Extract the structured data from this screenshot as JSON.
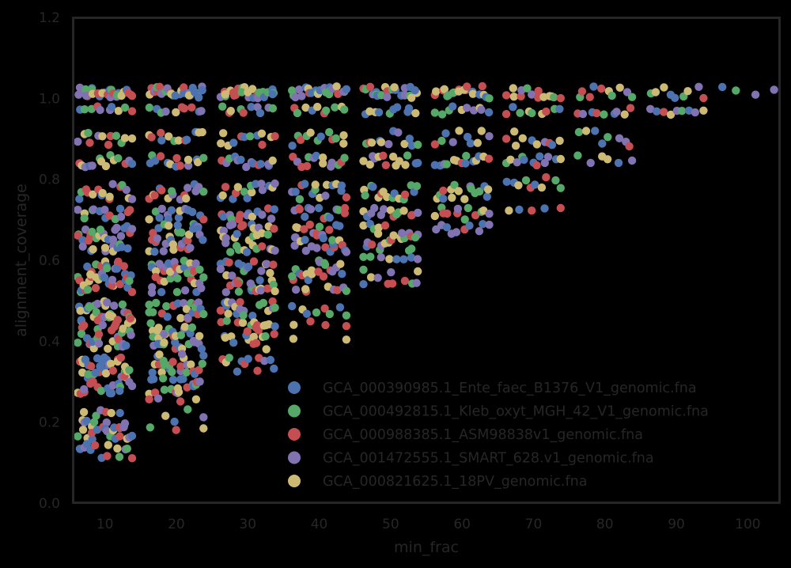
{
  "chart_data": {
    "type": "scatter",
    "title": "",
    "xlabel": "min_frac",
    "ylabel": "alignment_coverage",
    "xlim": [
      5.5,
      104.5
    ],
    "ylim": [
      0.0,
      1.2
    ],
    "xticks": [
      10,
      20,
      30,
      40,
      50,
      60,
      70,
      80,
      90,
      100
    ],
    "yticks": [
      "0.0",
      "0.2",
      "0.4",
      "0.6",
      "0.8",
      "1.0",
      "1.2"
    ],
    "grid": false,
    "legend_position": "lower right",
    "jitter_width": 8,
    "series": [
      {
        "name": "GCA_000390985.1_Ente_faec_B1376_V1_genomic.fna",
        "color": "#4C72B0"
      },
      {
        "name": "GCA_000492815.1_Kleb_oxyt_MGH_42_V1_genomic.fna",
        "color": "#55A868"
      },
      {
        "name": "GCA_000988385.1_ASM98838v1_genomic.fna",
        "color": "#C44E52"
      },
      {
        "name": "GCA_001472555.1_SMART_628.v1_genomic.fna",
        "color": "#8172B2"
      },
      {
        "name": "GCA_000821625.1_18PV_genomic.fna",
        "color": "#CCB974"
      }
    ],
    "groups": [
      {
        "x": 10,
        "bands": [
          [
            1.0,
            1.03,
            28
          ],
          [
            0.96,
            0.98,
            10
          ],
          [
            0.88,
            0.92,
            12
          ],
          [
            0.83,
            0.86,
            14
          ],
          [
            0.75,
            0.79,
            16
          ],
          [
            0.7,
            0.73,
            14
          ],
          [
            0.62,
            0.69,
            34
          ],
          [
            0.52,
            0.6,
            40
          ],
          [
            0.38,
            0.5,
            60
          ],
          [
            0.27,
            0.37,
            50
          ],
          [
            0.11,
            0.23,
            48
          ]
        ]
      },
      {
        "x": 20,
        "bands": [
          [
            1.0,
            1.03,
            28
          ],
          [
            0.96,
            0.98,
            10
          ],
          [
            0.88,
            0.92,
            12
          ],
          [
            0.83,
            0.86,
            14
          ],
          [
            0.75,
            0.79,
            16
          ],
          [
            0.7,
            0.73,
            14
          ],
          [
            0.62,
            0.69,
            34
          ],
          [
            0.52,
            0.6,
            40
          ],
          [
            0.38,
            0.5,
            60
          ],
          [
            0.27,
            0.37,
            44
          ],
          [
            0.2,
            0.26,
            8
          ],
          [
            0.17,
            0.19,
            3
          ]
        ]
      },
      {
        "x": 30,
        "bands": [
          [
            1.0,
            1.03,
            26
          ],
          [
            0.96,
            0.98,
            10
          ],
          [
            0.88,
            0.92,
            12
          ],
          [
            0.83,
            0.86,
            14
          ],
          [
            0.75,
            0.79,
            16
          ],
          [
            0.7,
            0.73,
            14
          ],
          [
            0.62,
            0.69,
            32
          ],
          [
            0.52,
            0.6,
            38
          ],
          [
            0.38,
            0.5,
            48
          ],
          [
            0.32,
            0.36,
            12
          ]
        ]
      },
      {
        "x": 40,
        "bands": [
          [
            1.0,
            1.03,
            24
          ],
          [
            0.96,
            0.98,
            10
          ],
          [
            0.88,
            0.92,
            12
          ],
          [
            0.83,
            0.86,
            14
          ],
          [
            0.75,
            0.79,
            16
          ],
          [
            0.7,
            0.73,
            14
          ],
          [
            0.62,
            0.69,
            30
          ],
          [
            0.52,
            0.6,
            28
          ],
          [
            0.46,
            0.5,
            8
          ],
          [
            0.43,
            0.45,
            4
          ],
          [
            0.4,
            0.41,
            2
          ]
        ]
      },
      {
        "x": 50,
        "bands": [
          [
            1.0,
            1.03,
            22
          ],
          [
            0.96,
            0.98,
            10
          ],
          [
            0.88,
            0.92,
            12
          ],
          [
            0.83,
            0.86,
            14
          ],
          [
            0.75,
            0.79,
            16
          ],
          [
            0.7,
            0.73,
            14
          ],
          [
            0.62,
            0.69,
            26
          ],
          [
            0.6,
            0.61,
            8
          ],
          [
            0.57,
            0.58,
            3
          ],
          [
            0.54,
            0.56,
            8
          ]
        ]
      },
      {
        "x": 60,
        "bands": [
          [
            1.0,
            1.03,
            20
          ],
          [
            0.96,
            0.98,
            10
          ],
          [
            0.88,
            0.92,
            10
          ],
          [
            0.83,
            0.86,
            14
          ],
          [
            0.75,
            0.79,
            16
          ],
          [
            0.7,
            0.73,
            12
          ],
          [
            0.66,
            0.69,
            10
          ]
        ]
      },
      {
        "x": 70,
        "bands": [
          [
            1.0,
            1.03,
            14
          ],
          [
            0.96,
            0.98,
            9
          ],
          [
            0.88,
            0.92,
            10
          ],
          [
            0.83,
            0.86,
            12
          ],
          [
            0.77,
            0.81,
            10
          ],
          [
            0.72,
            0.74,
            5
          ]
        ]
      },
      {
        "x": 80,
        "bands": [
          [
            1.0,
            1.03,
            10
          ],
          [
            0.96,
            0.98,
            9
          ],
          [
            0.88,
            0.92,
            8
          ],
          [
            0.84,
            0.86,
            6
          ]
        ]
      },
      {
        "x": 90,
        "bands": [
          [
            1.0,
            1.03,
            9
          ],
          [
            0.95,
            0.98,
            9
          ]
        ]
      },
      {
        "x": 100,
        "bands": [
          [
            1.0,
            1.03,
            4
          ]
        ]
      }
    ]
  }
}
